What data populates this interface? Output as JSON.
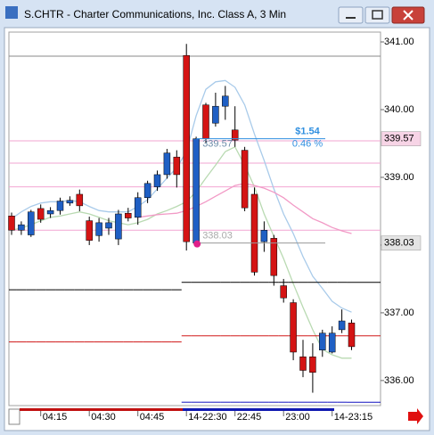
{
  "window_title": "S.CHTR - Charter Communications, Inc. Class A, 3 Min",
  "chart_data": {
    "type": "candlestick",
    "categories": [
      null,
      null,
      null,
      "04:15",
      null,
      null,
      null,
      null,
      "04:30",
      null,
      null,
      null,
      null,
      "04:45",
      null,
      null,
      null,
      null,
      "14-22:30",
      null,
      null,
      null,
      null,
      "22:45",
      null,
      null,
      null,
      null,
      "23:00",
      null,
      null,
      null,
      null,
      "14-23:15",
      null,
      null
    ],
    "open": [
      338.43,
      338.22,
      338.15,
      338.54,
      338.46,
      338.51,
      338.62,
      338.75,
      338.36,
      338.14,
      338.25,
      338.09,
      338.47,
      338.41,
      338.7,
      338.86,
      339.04,
      339.3,
      340.8,
      338.03,
      340.07,
      339.8,
      340.05,
      339.7,
      339.4,
      338.75,
      338.05,
      338.1,
      337.4,
      337.15,
      336.35,
      336.35,
      336.45,
      336.42,
      336.75,
      336.85
    ],
    "high": [
      338.48,
      338.35,
      338.52,
      338.6,
      338.56,
      338.7,
      338.72,
      338.82,
      338.42,
      338.4,
      338.4,
      338.52,
      338.55,
      338.78,
      338.95,
      339.1,
      339.42,
      339.4,
      340.97,
      339.6,
      340.1,
      340.25,
      340.35,
      340.05,
      339.45,
      338.85,
      338.35,
      338.15,
      337.5,
      337.2,
      336.6,
      336.55,
      336.75,
      336.8,
      337.05,
      336.9
    ],
    "low": [
      338.15,
      338.15,
      338.12,
      338.33,
      338.4,
      338.45,
      338.58,
      338.5,
      338.0,
      338.05,
      338.15,
      338.0,
      338.35,
      338.3,
      338.62,
      338.8,
      338.98,
      338.85,
      337.92,
      337.98,
      339.5,
      339.75,
      339.85,
      339.45,
      338.5,
      337.55,
      337.9,
      337.4,
      337.15,
      336.3,
      336.05,
      335.82,
      336.35,
      336.4,
      336.7,
      336.45
    ],
    "close": [
      338.22,
      338.3,
      338.49,
      338.38,
      338.51,
      338.65,
      338.66,
      338.58,
      338.07,
      338.33,
      338.33,
      338.46,
      338.4,
      338.7,
      338.91,
      339.04,
      339.36,
      339.04,
      338.05,
      339.57,
      339.57,
      340.05,
      340.2,
      339.55,
      338.55,
      337.6,
      338.22,
      337.55,
      337.22,
      336.42,
      336.15,
      336.12,
      336.7,
      336.7,
      336.88,
      336.5
    ],
    "up_color": "#1f5fc4",
    "down_color": "#d41414",
    "ylim": [
      335.63,
      341.145
    ],
    "yticks": [
      {
        "value": 336,
        "label": "336.00"
      },
      {
        "value": 337,
        "label": "337.00"
      },
      {
        "value": 338,
        "label": "338.00"
      },
      {
        "value": 339,
        "label": "339.00"
      },
      {
        "value": 340,
        "label": "340.00"
      },
      {
        "value": 341,
        "label": "341.00"
      }
    ],
    "overlays": [
      {
        "color": "#a9cbea",
        "values": [
          338.39,
          338.49,
          338.57,
          338.62,
          338.64,
          338.64,
          338.66,
          338.64,
          338.57,
          338.51,
          338.49,
          338.49,
          338.49,
          338.57,
          338.67,
          338.83,
          338.99,
          339.14,
          339.38,
          339.91,
          340.3,
          340.41,
          340.43,
          340.33,
          340.07,
          339.64,
          339.25,
          338.83,
          338.46,
          338.17,
          337.83,
          337.54,
          337.36,
          337.17,
          337.07,
          337.01
        ]
      },
      {
        "color": "#b9dab2",
        "values": [
          338.22,
          338.25,
          338.3,
          338.36,
          338.41,
          338.43,
          338.46,
          338.49,
          338.46,
          338.41,
          338.36,
          338.33,
          338.3,
          338.33,
          338.38,
          338.46,
          338.51,
          338.57,
          338.64,
          338.79,
          338.99,
          339.18,
          339.38,
          339.45,
          339.18,
          338.86,
          338.46,
          338.13,
          337.8,
          337.43,
          337.08,
          336.75,
          336.46,
          336.38,
          336.33,
          336.33
        ]
      },
      {
        "color": "#f29ac6",
        "values": [
          null,
          null,
          null,
          null,
          null,
          null,
          null,
          null,
          null,
          null,
          null,
          null,
          null,
          338.41,
          338.43,
          338.45,
          338.46,
          338.47,
          338.51,
          338.57,
          338.64,
          338.72,
          338.8,
          338.88,
          338.91,
          338.88,
          338.84,
          338.78,
          338.7,
          338.59,
          338.49,
          338.39,
          338.33,
          338.26,
          338.21,
          338.17
        ]
      },
      {
        "color": "#000000",
        "step": true,
        "values": [
          337.34,
          337.34,
          337.34,
          337.34,
          337.34,
          337.34,
          337.34,
          337.34,
          337.34,
          337.34,
          337.34,
          337.34,
          337.34,
          337.34,
          337.34,
          337.34,
          337.34,
          337.34,
          337.45,
          337.45,
          337.45,
          337.45,
          337.45,
          337.45,
          337.45,
          337.45,
          337.45,
          337.45,
          337.45,
          337.45,
          337.45,
          337.45,
          337.45,
          337.45,
          337.45,
          337.45
        ]
      },
      {
        "color": "#d01818",
        "step": true,
        "values": [
          336.57,
          336.57,
          336.57,
          336.57,
          336.57,
          336.57,
          336.57,
          336.57,
          336.57,
          336.57,
          336.57,
          336.57,
          336.57,
          336.57,
          336.57,
          336.57,
          336.57,
          336.57,
          336.66,
          336.66,
          336.66,
          336.66,
          336.66,
          336.66,
          336.66,
          336.66,
          336.66,
          336.66,
          336.66,
          336.66,
          336.66,
          336.66,
          336.66,
          336.66,
          336.66,
          336.66
        ]
      },
      {
        "color": "#1010c0",
        "step": true,
        "values": [
          null,
          null,
          null,
          null,
          null,
          null,
          null,
          null,
          null,
          null,
          null,
          null,
          null,
          null,
          null,
          null,
          null,
          null,
          335.68,
          335.68,
          335.68,
          335.68,
          335.68,
          335.68,
          335.68,
          335.68,
          335.68,
          335.68,
          335.68,
          335.68,
          335.68,
          335.68,
          335.68,
          335.68,
          335.68,
          335.68
        ]
      }
    ],
    "levels": [
      {
        "value": 340.79,
        "color": "#8a8a8a"
      },
      {
        "value": 339.54,
        "color": "#f2a6d2"
      },
      {
        "value": 339.21,
        "color": "#f2a6d2"
      },
      {
        "value": 338.86,
        "color": "#f2a6d2"
      },
      {
        "value": 338.22,
        "color": "#f2a6d2"
      }
    ],
    "measure": {
      "start": 338.03,
      "end": 339.57,
      "change_label": "$1.54",
      "percent_label": "0.46 %",
      "color": "#2f8fe0"
    },
    "price_markers": [
      {
        "value": 339.57,
        "background": "#f7d4e6"
      },
      {
        "value": 338.03,
        "background": "#e4e4e4"
      }
    ]
  }
}
